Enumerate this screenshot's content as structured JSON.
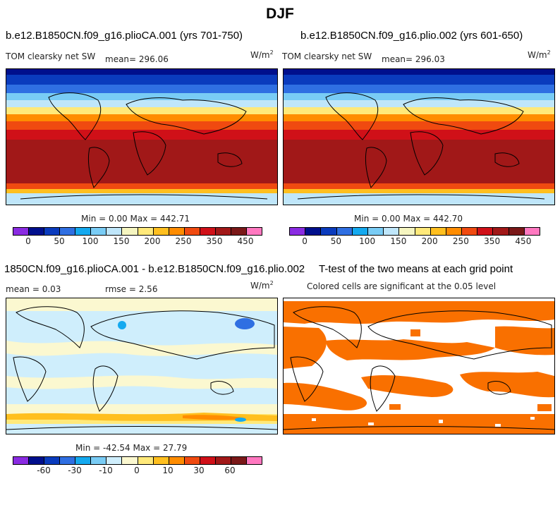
{
  "title": "DJF",
  "colors": {
    "level_palette": [
      "#8a2be2",
      "#000f8c",
      "#0a3bbd",
      "#2f6fe2",
      "#14a9ef",
      "#79ccf5",
      "#bfe6fa",
      "#f5f5c0",
      "#ffe97a",
      "#ffbf1f",
      "#ff8c00",
      "#f04a10",
      "#d01018",
      "#a11818",
      "#7a1818",
      "#ff78c0"
    ],
    "diff_palette": [
      "#8a2be2",
      "#000f8c",
      "#0a3bbd",
      "#2f6fe2",
      "#14a9ef",
      "#79ccf5",
      "#cfeefc",
      "#fbf8d0",
      "#ffe97a",
      "#ffbf1f",
      "#ff8c00",
      "#f04a10",
      "#d01018",
      "#a11818",
      "#7a1818",
      "#ff78c0"
    ],
    "significant": "#f97000"
  },
  "panels": {
    "top_left": {
      "case_title": "b.e12.B1850CN.f09_g16.plioCA.001 (yrs 701-750)",
      "variable": "TOM clearsky net SW",
      "mean_text": "mean= 296.06",
      "units_base": "W/m",
      "units_exp": "2",
      "minmax_text": "Min =    0.00 Max = 442.71"
    },
    "top_right": {
      "case_title": "b.e12.B1850CN.f09_g16.plio.002 (yrs 601-650)",
      "variable": "TOM clearsky net SW",
      "mean_text": "mean= 296.03",
      "units_base": "W/m",
      "units_exp": "2",
      "minmax_text": "Min =    0.00 Max = 442.70"
    },
    "bottom_left": {
      "case_title": "1850CN.f09_g16.plioCA.001 - b.e12.B1850CN.f09_g16.plio.002",
      "mean_text": "mean =    0.03",
      "rmse_text": "rmse =    2.56",
      "units_base": "W/m",
      "units_exp": "2",
      "minmax_text": "Min = -42.54 Max =  27.79"
    },
    "bottom_right": {
      "title": "T-test of the two means at each grid point",
      "subtitle": "Colored cells are significant at the 0.05 level"
    }
  },
  "colorbars": {
    "level_labels": [
      "0",
      "50",
      "100",
      "150",
      "200",
      "250",
      "350",
      "450"
    ],
    "diff_labels": [
      "-60",
      "-30",
      "-10",
      "0",
      "10",
      "30",
      "60"
    ]
  }
}
